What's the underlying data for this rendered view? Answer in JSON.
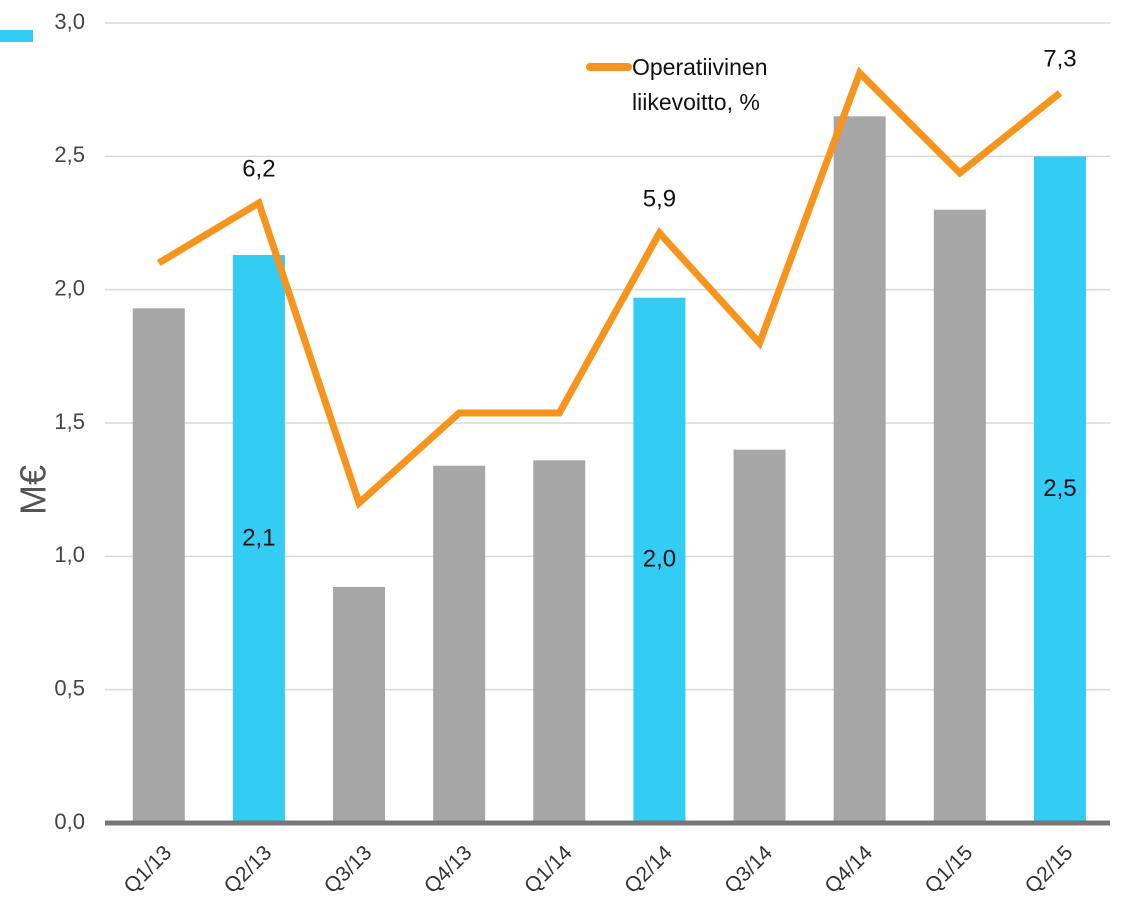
{
  "chart_data": {
    "type": "bar",
    "categories": [
      "Q1/13",
      "Q2/13",
      "Q3/13",
      "Q4/13",
      "Q1/14",
      "Q2/14",
      "Q3/14",
      "Q4/14",
      "Q1/15",
      "Q2/15"
    ],
    "ylabel": "M€",
    "ylim": [
      0,
      3
    ],
    "yticks": [
      {
        "value": 0,
        "label": "0,0"
      },
      {
        "value": 0.5,
        "label": "0,5"
      },
      {
        "value": 1,
        "label": "1,0"
      },
      {
        "value": 1.5,
        "label": "1,5"
      },
      {
        "value": 2,
        "label": "2,0"
      },
      {
        "value": 2.5,
        "label": "2,5"
      },
      {
        "value": 3,
        "label": "3,0"
      }
    ],
    "y2lim": [
      0,
      8
    ],
    "grid": true,
    "series": [
      {
        "type": "bar",
        "color": "#33ccf5",
        "colors": [
          "#a6a6a6",
          "#33ccf5",
          "#a6a6a6",
          "#a6a6a6",
          "#a6a6a6",
          "#33ccf5",
          "#a6a6a6",
          "#a6a6a6",
          "#a6a6a6",
          "#33ccf5"
        ],
        "values": [
          1.93,
          2.13,
          0.885,
          1.34,
          1.36,
          1.97,
          1.4,
          2.65,
          2.3,
          2.5
        ],
        "value_labels": [
          null,
          "2,1",
          null,
          null,
          null,
          "2,0",
          null,
          null,
          null,
          "2,5"
        ]
      },
      {
        "type": "line",
        "name": "Operatiivinen liikevoitto, %",
        "color": "#f7941d",
        "axis": "y2",
        "values": [
          5.6,
          6.2,
          3.2,
          4.1,
          4.1,
          5.9,
          4.8,
          7.5,
          6.5,
          7.3
        ],
        "value_labels": [
          null,
          "6,2",
          null,
          null,
          null,
          "5,9",
          null,
          null,
          null,
          "7,3"
        ]
      }
    ]
  }
}
